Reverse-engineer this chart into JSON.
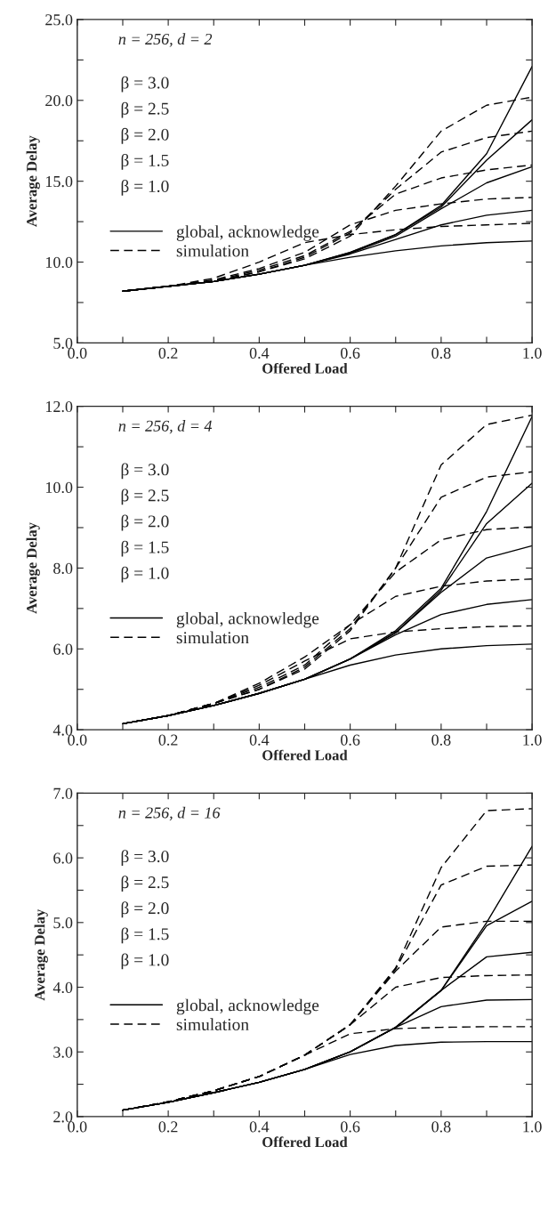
{
  "chart_data": [
    {
      "type": "line",
      "xlabel": "Offered Load",
      "ylabel": "Average Delay",
      "x": [
        0.1,
        0.2,
        0.3,
        0.4,
        0.5,
        0.6,
        0.7,
        0.8,
        0.9,
        1.0
      ],
      "xlim": [
        0.0,
        1.0
      ],
      "ylim": [
        5.0,
        25.0
      ],
      "xticks": [
        {
          "value": 0.0,
          "label": "0.0"
        },
        {
          "value": 0.1,
          "label": null
        },
        {
          "value": 0.2,
          "label": "0.2"
        },
        {
          "value": 0.3,
          "label": null
        },
        {
          "value": 0.4,
          "label": "0.4"
        },
        {
          "value": 0.5,
          "label": null
        },
        {
          "value": 0.6,
          "label": "0.6"
        },
        {
          "value": 0.7,
          "label": null
        },
        {
          "value": 0.8,
          "label": "0.8"
        },
        {
          "value": 0.9,
          "label": null
        },
        {
          "value": 1.0,
          "label": "1.0"
        }
      ],
      "yticks": [
        {
          "value": 5.0,
          "label": "5.0"
        },
        {
          "value": 7.5,
          "label": null
        },
        {
          "value": 10.0,
          "label": "10.0"
        },
        {
          "value": 12.5,
          "label": null
        },
        {
          "value": 15.0,
          "label": "15.0"
        },
        {
          "value": 17.5,
          "label": null
        },
        {
          "value": 20.0,
          "label": "20.0"
        },
        {
          "value": 22.5,
          "label": null
        },
        {
          "value": 25.0,
          "label": "25.0"
        }
      ],
      "annotations": [
        "n = 256, d = 2",
        "β = 3.0",
        "β = 2.5",
        "β = 2.0",
        "β = 1.5",
        "β = 1.0"
      ],
      "legend": "center",
      "grid": false,
      "marker": "none",
      "series": [
        {
          "name": "global, acknowledge",
          "color": "#000000",
          "line_style": "solid",
          "values": [
            8.2,
            8.5,
            8.8,
            9.25,
            9.8,
            10.3,
            10.7,
            11.0,
            11.2,
            11.3
          ]
        },
        {
          "color": "#000000",
          "line_style": "solid",
          "values": [
            8.2,
            8.5,
            8.8,
            9.25,
            9.8,
            10.5,
            11.4,
            12.3,
            12.9,
            13.2
          ]
        },
        {
          "color": "#000000",
          "line_style": "solid",
          "values": [
            8.2,
            8.5,
            8.8,
            9.25,
            9.8,
            10.55,
            11.6,
            13.3,
            14.9,
            15.9
          ]
        },
        {
          "color": "#000000",
          "line_style": "solid",
          "values": [
            8.2,
            8.5,
            8.8,
            9.25,
            9.8,
            10.6,
            11.7,
            13.4,
            16.3,
            18.8
          ]
        },
        {
          "color": "#000000",
          "line_style": "solid",
          "values": [
            8.2,
            8.5,
            8.8,
            9.25,
            9.8,
            10.6,
            11.7,
            13.5,
            16.7,
            22.1
          ]
        },
        {
          "name": "simulation",
          "color": "#000000",
          "line_style": "dashed",
          "values": [
            8.2,
            8.5,
            9.0,
            10.0,
            11.2,
            11.7,
            12.0,
            12.2,
            12.3,
            12.4
          ]
        },
        {
          "color": "#000000",
          "line_style": "dashed",
          "values": [
            8.2,
            8.5,
            8.9,
            9.6,
            10.6,
            12.3,
            13.2,
            13.6,
            13.9,
            14.0
          ]
        },
        {
          "color": "#000000",
          "line_style": "dashed",
          "values": [
            8.2,
            8.5,
            8.85,
            9.5,
            10.4,
            11.9,
            14.2,
            15.2,
            15.7,
            16.0
          ]
        },
        {
          "color": "#000000",
          "line_style": "dashed",
          "values": [
            8.2,
            8.5,
            8.8,
            9.4,
            10.3,
            11.8,
            14.5,
            16.8,
            17.7,
            18.1
          ]
        },
        {
          "color": "#000000",
          "line_style": "dashed",
          "values": [
            8.2,
            8.5,
            8.8,
            9.4,
            10.2,
            11.6,
            14.7,
            18.1,
            19.7,
            20.2
          ]
        }
      ]
    },
    {
      "type": "line",
      "xlabel": "Offered Load",
      "ylabel": "Average Delay",
      "x": [
        0.1,
        0.2,
        0.3,
        0.4,
        0.5,
        0.6,
        0.7,
        0.8,
        0.9,
        1.0
      ],
      "xlim": [
        0.0,
        1.0
      ],
      "ylim": [
        4.0,
        12.0
      ],
      "xticks": [
        {
          "value": 0.0,
          "label": "0.0"
        },
        {
          "value": 0.1,
          "label": null
        },
        {
          "value": 0.2,
          "label": "0.2"
        },
        {
          "value": 0.3,
          "label": null
        },
        {
          "value": 0.4,
          "label": "0.4"
        },
        {
          "value": 0.5,
          "label": null
        },
        {
          "value": 0.6,
          "label": "0.6"
        },
        {
          "value": 0.7,
          "label": null
        },
        {
          "value": 0.8,
          "label": "0.8"
        },
        {
          "value": 0.9,
          "label": null
        },
        {
          "value": 1.0,
          "label": "1.0"
        }
      ],
      "yticks": [
        {
          "value": 4.0,
          "label": "4.0"
        },
        {
          "value": 5.0,
          "label": null
        },
        {
          "value": 6.0,
          "label": "6.0"
        },
        {
          "value": 7.0,
          "label": null
        },
        {
          "value": 8.0,
          "label": "8.0"
        },
        {
          "value": 9.0,
          "label": null
        },
        {
          "value": 10.0,
          "label": "10.0"
        },
        {
          "value": 11.0,
          "label": null
        },
        {
          "value": 12.0,
          "label": "12.0"
        }
      ],
      "annotations": [
        "n = 256, d = 4",
        "β = 3.0",
        "β = 2.5",
        "β = 2.0",
        "β = 1.5",
        "β = 1.0"
      ],
      "legend": "center",
      "grid": false,
      "marker": "none",
      "series": [
        {
          "name": "global, acknowledge",
          "color": "#000000",
          "line_style": "solid",
          "values": [
            4.15,
            4.35,
            4.6,
            4.9,
            5.25,
            5.6,
            5.85,
            6.0,
            6.08,
            6.12
          ]
        },
        {
          "color": "#000000",
          "line_style": "solid",
          "values": [
            4.15,
            4.35,
            4.6,
            4.9,
            5.25,
            5.75,
            6.35,
            6.85,
            7.1,
            7.22
          ]
        },
        {
          "color": "#000000",
          "line_style": "solid",
          "values": [
            4.15,
            4.35,
            4.6,
            4.9,
            5.25,
            5.75,
            6.4,
            7.4,
            8.25,
            8.55
          ]
        },
        {
          "color": "#000000",
          "line_style": "solid",
          "values": [
            4.15,
            4.35,
            4.6,
            4.9,
            5.25,
            5.75,
            6.4,
            7.45,
            9.1,
            10.1
          ]
        },
        {
          "color": "#000000",
          "line_style": "solid",
          "values": [
            4.15,
            4.35,
            4.6,
            4.9,
            5.25,
            5.75,
            6.45,
            7.5,
            9.4,
            11.75
          ]
        },
        {
          "name": "simulation",
          "color": "#000000",
          "line_style": "dashed",
          "values": [
            4.15,
            4.35,
            4.65,
            5.1,
            5.7,
            6.25,
            6.42,
            6.5,
            6.55,
            6.57
          ]
        },
        {
          "color": "#000000",
          "line_style": "dashed",
          "values": [
            4.15,
            4.35,
            4.65,
            5.15,
            5.8,
            6.6,
            7.3,
            7.55,
            7.68,
            7.73
          ]
        },
        {
          "color": "#000000",
          "line_style": "dashed",
          "values": [
            4.15,
            4.35,
            4.65,
            5.05,
            5.6,
            6.6,
            7.9,
            8.7,
            8.95,
            9.02
          ]
        },
        {
          "color": "#000000",
          "line_style": "dashed",
          "values": [
            4.15,
            4.35,
            4.65,
            5.0,
            5.55,
            6.5,
            8.0,
            9.75,
            10.25,
            10.38
          ]
        },
        {
          "color": "#000000",
          "line_style": "dashed",
          "values": [
            4.15,
            4.35,
            4.65,
            5.0,
            5.5,
            6.45,
            8.0,
            10.55,
            11.55,
            11.78
          ]
        }
      ]
    },
    {
      "type": "line",
      "xlabel": "Offered Load",
      "ylabel": "Average Delay",
      "x": [
        0.1,
        0.2,
        0.3,
        0.4,
        0.5,
        0.6,
        0.7,
        0.8,
        0.9,
        1.0
      ],
      "xlim": [
        0.0,
        1.0
      ],
      "ylim": [
        2.0,
        7.0
      ],
      "xticks": [
        {
          "value": 0.0,
          "label": "0.0"
        },
        {
          "value": 0.1,
          "label": null
        },
        {
          "value": 0.2,
          "label": "0.2"
        },
        {
          "value": 0.3,
          "label": null
        },
        {
          "value": 0.4,
          "label": "0.4"
        },
        {
          "value": 0.5,
          "label": null
        },
        {
          "value": 0.6,
          "label": "0.6"
        },
        {
          "value": 0.7,
          "label": null
        },
        {
          "value": 0.8,
          "label": "0.8"
        },
        {
          "value": 0.9,
          "label": null
        },
        {
          "value": 1.0,
          "label": "1.0"
        }
      ],
      "yticks": [
        {
          "value": 2.0,
          "label": "2.0"
        },
        {
          "value": 2.5,
          "label": null
        },
        {
          "value": 3.0,
          "label": "3.0"
        },
        {
          "value": 3.5,
          "label": null
        },
        {
          "value": 4.0,
          "label": "4.0"
        },
        {
          "value": 4.5,
          "label": null
        },
        {
          "value": 5.0,
          "label": "5.0"
        },
        {
          "value": 5.5,
          "label": null
        },
        {
          "value": 6.0,
          "label": "6.0"
        },
        {
          "value": 6.5,
          "label": null
        },
        {
          "value": 7.0,
          "label": "7.0"
        }
      ],
      "annotations": [
        "n = 256, d = 16",
        "β = 3.0",
        "β = 2.5",
        "β = 2.0",
        "β = 1.5",
        "β = 1.0"
      ],
      "legend": "center",
      "grid": false,
      "marker": "none",
      "series": [
        {
          "name": "global, acknowledge",
          "color": "#000000",
          "line_style": "solid",
          "values": [
            2.1,
            2.22,
            2.37,
            2.53,
            2.73,
            2.96,
            3.1,
            3.15,
            3.16,
            3.16
          ]
        },
        {
          "color": "#000000",
          "line_style": "solid",
          "values": [
            2.1,
            2.22,
            2.37,
            2.53,
            2.73,
            3.0,
            3.38,
            3.7,
            3.8,
            3.81
          ]
        },
        {
          "color": "#000000",
          "line_style": "solid",
          "values": [
            2.1,
            2.22,
            2.37,
            2.53,
            2.73,
            3.0,
            3.38,
            3.95,
            4.47,
            4.54
          ]
        },
        {
          "color": "#000000",
          "line_style": "solid",
          "values": [
            2.1,
            2.22,
            2.37,
            2.53,
            2.73,
            3.0,
            3.38,
            3.95,
            4.95,
            5.33
          ]
        },
        {
          "color": "#000000",
          "line_style": "solid",
          "values": [
            2.1,
            2.22,
            2.37,
            2.53,
            2.73,
            3.0,
            3.38,
            3.95,
            5.0,
            6.18
          ]
        },
        {
          "name": "simulation",
          "color": "#000000",
          "line_style": "dashed",
          "values": [
            2.1,
            2.23,
            2.4,
            2.62,
            2.95,
            3.28,
            3.36,
            3.38,
            3.39,
            3.39
          ]
        },
        {
          "color": "#000000",
          "line_style": "dashed",
          "values": [
            2.1,
            2.23,
            2.4,
            2.62,
            2.95,
            3.42,
            4.0,
            4.15,
            4.18,
            4.19
          ]
        },
        {
          "color": "#000000",
          "line_style": "dashed",
          "values": [
            2.1,
            2.23,
            2.4,
            2.62,
            2.95,
            3.42,
            4.25,
            4.93,
            5.02,
            5.02
          ]
        },
        {
          "color": "#000000",
          "line_style": "dashed",
          "values": [
            2.1,
            2.23,
            2.4,
            2.62,
            2.95,
            3.42,
            4.28,
            5.58,
            5.87,
            5.89
          ]
        },
        {
          "color": "#000000",
          "line_style": "dashed",
          "values": [
            2.1,
            2.23,
            2.4,
            2.62,
            2.95,
            3.42,
            4.3,
            5.85,
            6.73,
            6.76
          ]
        }
      ]
    }
  ]
}
